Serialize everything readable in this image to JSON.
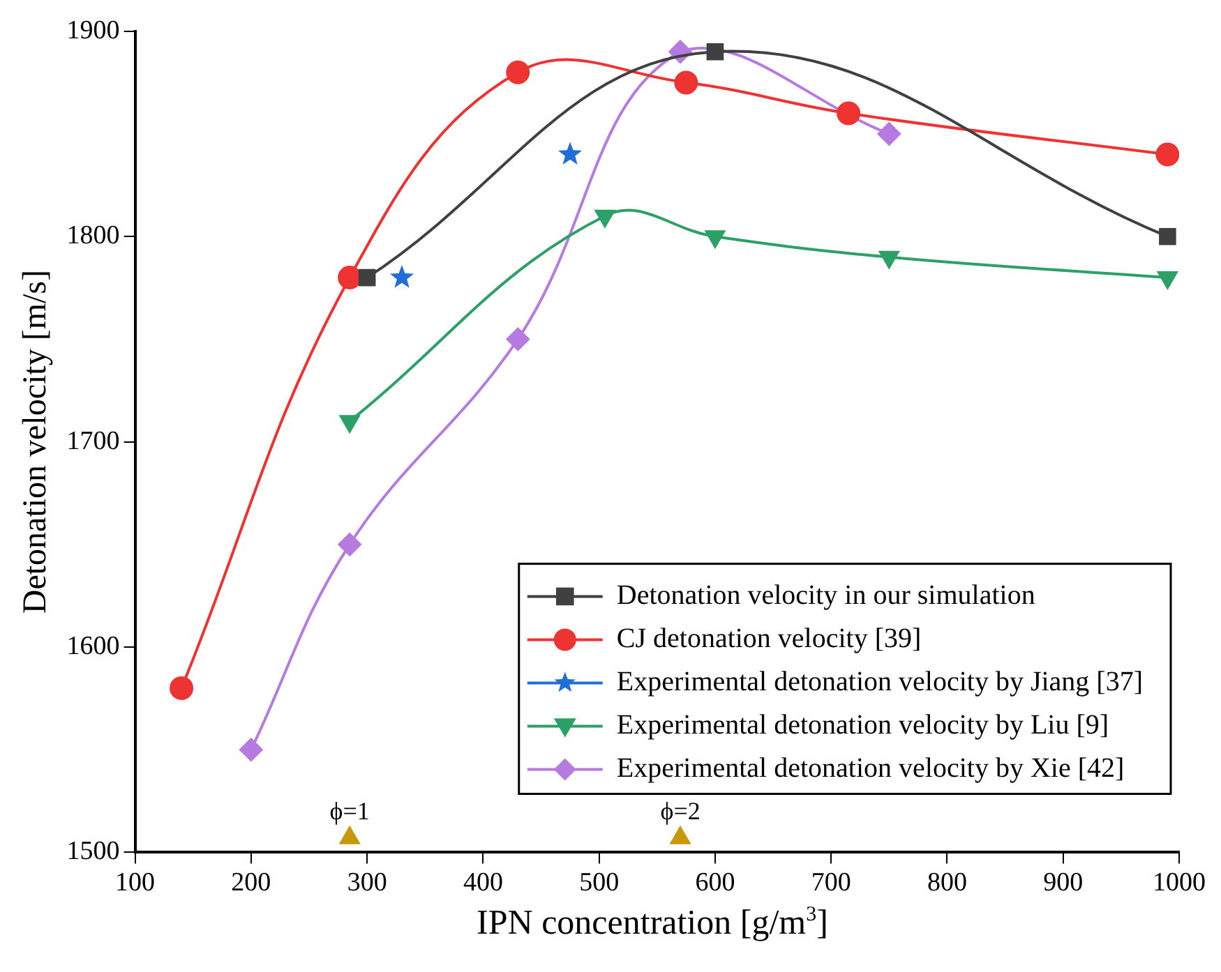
{
  "chart_data": {
    "type": "line",
    "xlabel": "IPN concentration [g/m$^{3}$]",
    "ylabel": "Detonation velocity [m/s]",
    "xlim": [
      100,
      1000
    ],
    "xticks": [
      100,
      200,
      300,
      400,
      500,
      600,
      700,
      800,
      900,
      1000
    ],
    "ylim": [
      1500,
      1900
    ],
    "yticks": [
      1500,
      1600,
      1700,
      1800,
      1900
    ],
    "grid": false,
    "legend": "bottom right",
    "series": [
      {
        "name": "Detonation velocity in our simulation",
        "color": "#404040",
        "marker": "square",
        "x": [
          300,
          600,
          990
        ],
        "values": [
          1780,
          1890,
          1800
        ]
      },
      {
        "name": "CJ detonation velocity [39]",
        "color": "#ee3333",
        "marker": "circle",
        "x": [
          140,
          285,
          430,
          575,
          715,
          990
        ],
        "values": [
          1580,
          1780,
          1880,
          1875,
          1860,
          1840
        ]
      },
      {
        "name": "Experimental detonation velocity by Jiang [37]",
        "color": "#1f6fd6",
        "marker": "star",
        "type": "scatter",
        "x": [
          330,
          475
        ],
        "values": [
          1780,
          1840
        ]
      },
      {
        "name": "Experimental detonation velocity by Liu [9]",
        "color": "#2ca066",
        "marker": "triangle-down",
        "x": [
          285,
          505,
          600,
          750,
          990
        ],
        "values": [
          1710,
          1810,
          1800,
          1790,
          1780
        ]
      },
      {
        "name": "Experimental detonation velocity by Xie [42]",
        "color": "#b57be0",
        "marker": "diamond",
        "x": [
          200,
          285,
          430,
          570,
          750
        ],
        "values": [
          1550,
          1650,
          1750,
          1890,
          1850
        ]
      },
      {
        "color": "#c8980c",
        "marker": "triangle",
        "type": "scatter",
        "x": [
          285,
          570
        ],
        "values": [
          1507,
          1507
        ]
      }
    ],
    "annotations": [
      {
        "text": "ϕ=1",
        "x": 285,
        "y": 1507
      },
      {
        "text": "ϕ=2",
        "x": 570,
        "y": 1507
      }
    ]
  }
}
